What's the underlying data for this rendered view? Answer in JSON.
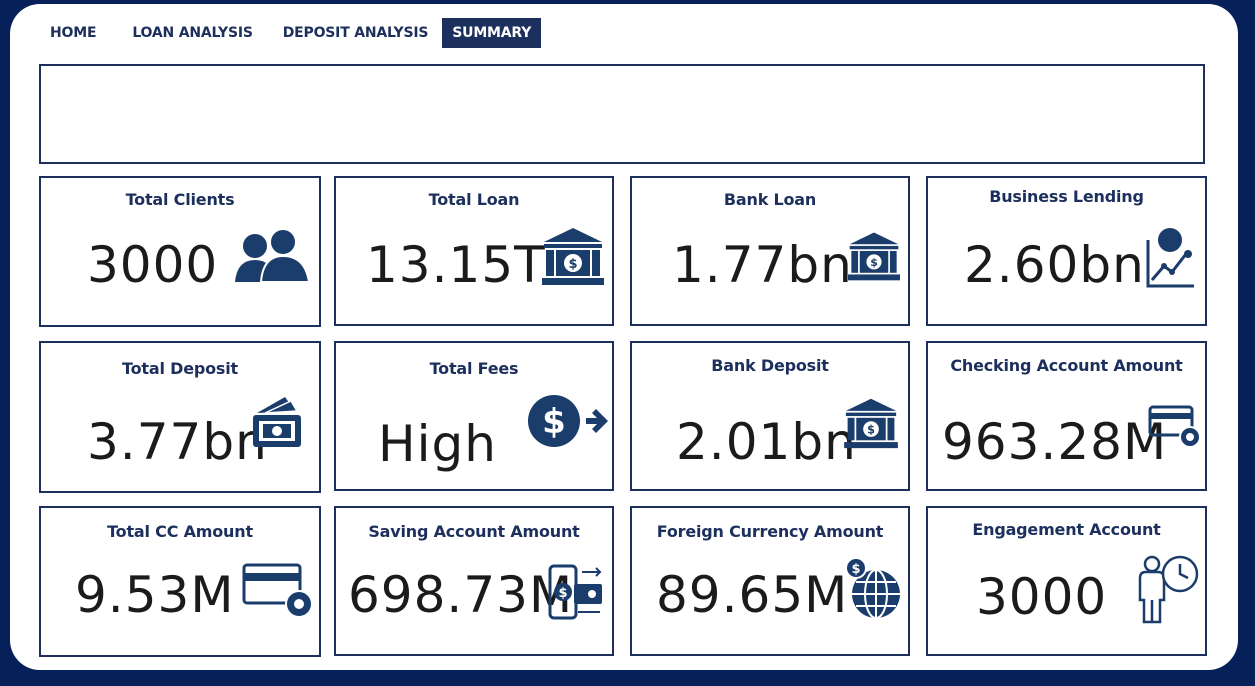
{
  "nav": {
    "tabs": [
      {
        "label": "HOME"
      },
      {
        "label": "LOAN ANALYSIS"
      },
      {
        "label": "DEPOSIT ANALYSIS"
      },
      {
        "label": "SUMMARY"
      }
    ],
    "active": "SUMMARY"
  },
  "colors": {
    "background": "#06205a",
    "accent": "#1d2f5c",
    "icon": "#1a3d6b",
    "value": "#1b1b1b"
  },
  "cards": [
    {
      "title": "Total Clients",
      "value": "3000",
      "icon": "users-icon"
    },
    {
      "title": "Total Loan",
      "value": "13.15T",
      "icon": "bank-icon"
    },
    {
      "title": "Bank Loan",
      "value": "1.77bn",
      "icon": "bank-icon"
    },
    {
      "title": "Business Lending",
      "value": "2.60bn",
      "icon": "growth-chart-icon"
    },
    {
      "title": "Total Deposit",
      "value": "3.77bn",
      "icon": "cash-wallet-icon"
    },
    {
      "title": "Total Fees",
      "value": "High",
      "icon": "dollar-arrow-icon"
    },
    {
      "title": "Bank Deposit",
      "value": "2.01bn",
      "icon": "bank-icon"
    },
    {
      "title": "Checking Account Amount",
      "value": "963.28M",
      "icon": "card-settings-icon"
    },
    {
      "title": "Total CC Amount",
      "value": "9.53M",
      "icon": "card-settings-icon"
    },
    {
      "title": "Saving Account Amount",
      "value": "698.73M",
      "icon": "mobile-payment-icon"
    },
    {
      "title": "Foreign Currency Amount",
      "value": "89.65M",
      "icon": "globe-dollar-icon"
    },
    {
      "title": "Engagement Account",
      "value": "3000",
      "icon": "person-clock-icon"
    }
  ]
}
